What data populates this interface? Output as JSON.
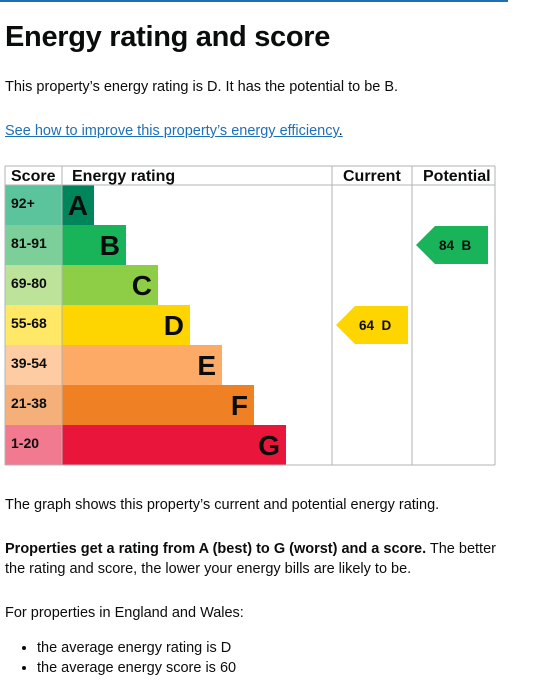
{
  "page": {
    "heading": "Energy rating and score",
    "intro": "This property’s energy rating is D. It has the potential to be B.",
    "improve_link": "See how to improve this property’s energy efficiency",
    "improve_link_suffix": ".",
    "graph_note": "The graph shows this property’s current and potential energy rating.",
    "properties_bold": "Properties get a rating from A (best) to G (worst) and a score.",
    "properties_rest": " The better the rating and score, the lower your energy bills are likely to be.",
    "region_note": "For properties in England and Wales:",
    "averages": [
      "the average energy rating is D",
      "the average energy score is 60"
    ]
  },
  "chart_data": {
    "type": "bar",
    "headers": {
      "score": "Score",
      "rating": "Energy rating",
      "current": "Current",
      "potential": "Potential"
    },
    "bands": [
      {
        "score": "92+",
        "letter": "A",
        "color": "#00855a",
        "score_color": "#5cc49d",
        "letter_color": "#0b0c0c",
        "width_rank": 1
      },
      {
        "score": "81-91",
        "letter": "B",
        "color": "#19b459",
        "score_color": "#7ccf98",
        "letter_color": "#0b0c0c",
        "width_rank": 2
      },
      {
        "score": "69-80",
        "letter": "C",
        "color": "#8dce46",
        "score_color": "#bde39a",
        "letter_color": "#0b0c0c",
        "width_rank": 3
      },
      {
        "score": "55-68",
        "letter": "D",
        "color": "#ffd500",
        "score_color": "#ffe866",
        "letter_color": "#0b0c0c",
        "width_rank": 4
      },
      {
        "score": "39-54",
        "letter": "E",
        "color": "#fcaa65",
        "score_color": "#fdcca2",
        "letter_color": "#0b0c0c",
        "width_rank": 5
      },
      {
        "score": "21-38",
        "letter": "F",
        "color": "#ef8023",
        "score_color": "#f5b07a",
        "letter_color": "#0b0c0c",
        "width_rank": 6
      },
      {
        "score": "1-20",
        "letter": "G",
        "color": "#e9153b",
        "score_color": "#f27a90",
        "letter_color": "#0b0c0c",
        "width_rank": 7
      }
    ],
    "current": {
      "score": 64,
      "letter": "D",
      "label": "64  D",
      "color": "#ffd500",
      "text_color": "#0b0c0c"
    },
    "potential": {
      "score": 84,
      "letter": "B",
      "label": "84  B",
      "color": "#19b459",
      "text_color": "#0b0c0c"
    },
    "grid_color": "#b1b4b6"
  }
}
